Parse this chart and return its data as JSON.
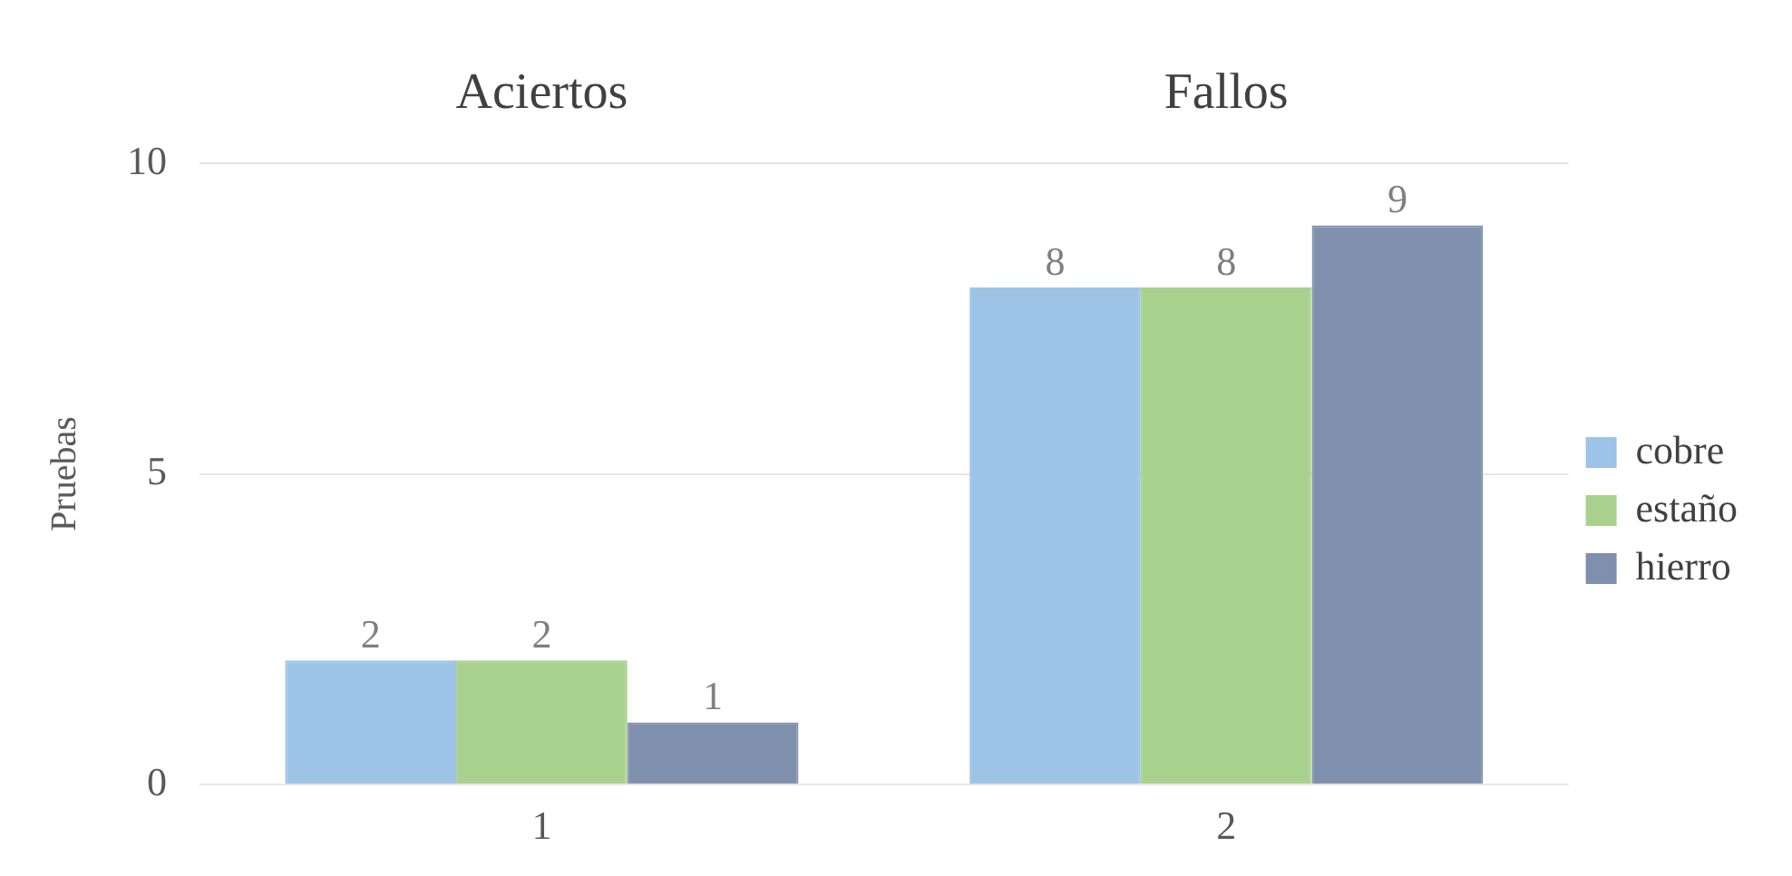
{
  "chart_data": {
    "type": "bar",
    "ylabel": "Pruebas",
    "categories": [
      "1",
      "2"
    ],
    "series": [
      {
        "name": "cobre",
        "color": "#9dc3e6",
        "values": [
          2,
          8
        ]
      },
      {
        "name": "estaño",
        "color": "#a9d18e",
        "values": [
          2,
          8
        ]
      },
      {
        "name": "hierro",
        "color": "#7f8fae",
        "values": [
          1,
          9
        ]
      }
    ],
    "ylim": [
      0,
      10
    ],
    "yticks": [
      0,
      5,
      10
    ],
    "grid": "y",
    "legend": "right",
    "data_labels": true,
    "annotations": [
      "Aciertos",
      "Fallos"
    ]
  }
}
